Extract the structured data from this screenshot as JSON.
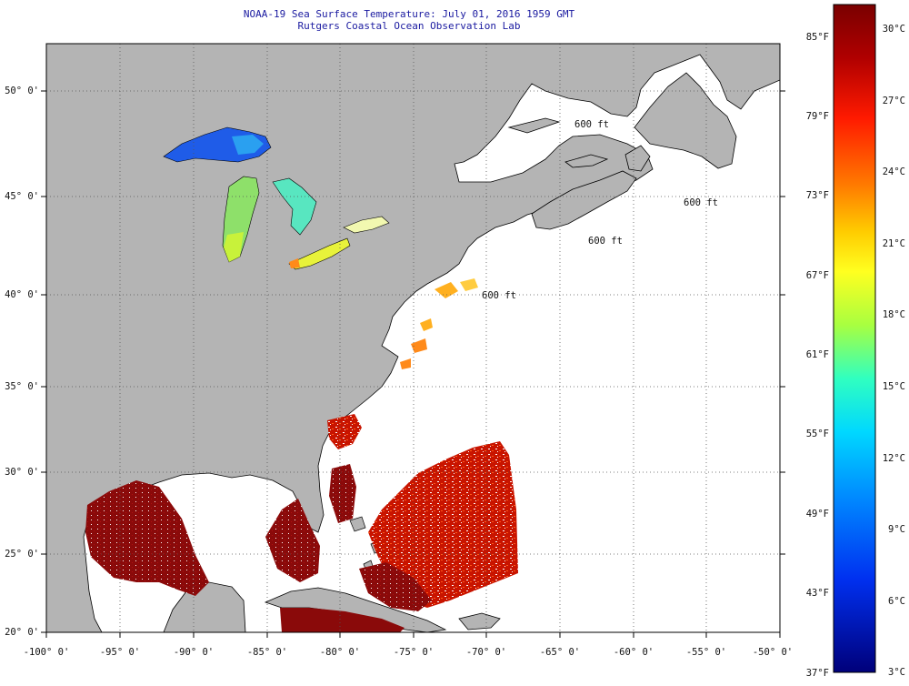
{
  "header": {
    "title": "NOAA-19 Sea Surface Temperature:  July 01, 2016 1959 GMT",
    "subtitle": "Rutgers Coastal Ocean Observation Lab"
  },
  "axes": {
    "lon_labels": [
      "-100° 0'",
      "-95° 0'",
      "-90° 0'",
      "-85° 0'",
      "-80° 0'",
      "-75° 0'",
      "-70° 0'",
      "-65° 0'",
      "-60° 0'",
      "-55° 0'",
      "-50° 0'"
    ],
    "lat_labels": [
      "20° 0'",
      "25° 0'",
      "30° 0'",
      "35° 0'",
      "40° 0'",
      "45° 0'",
      "50° 0'"
    ]
  },
  "colorbar": {
    "fahrenheit_labels": [
      "85°F",
      "79°F",
      "73°F",
      "67°F",
      "61°F",
      "55°F",
      "49°F",
      "43°F",
      "37°F"
    ],
    "celsius_labels": [
      "30°C",
      "27°C",
      "24°C",
      "21°C",
      "18°C",
      "15°C",
      "12°C",
      "9°C",
      "6°C",
      "3°C"
    ],
    "colors": [
      "#8b0000",
      "#c00000",
      "#ff2000",
      "#ff7a00",
      "#ffd000",
      "#ffff20",
      "#b0ff40",
      "#40ffb0",
      "#00e0ff",
      "#0090ff",
      "#0040ff",
      "#0010c0",
      "#000080"
    ]
  },
  "map_labels": {
    "isobath": "600 ft"
  },
  "colors": {
    "land": "#b4b4b4",
    "ocean": "#ffffff",
    "title": "#1a1aa0"
  }
}
